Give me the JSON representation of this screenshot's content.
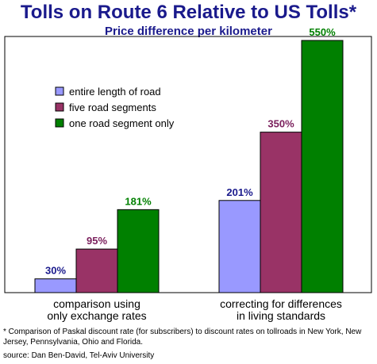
{
  "header": {
    "title": "Tolls on Route 6 Relative to US Tolls*",
    "subtitle": "Price difference per kilometer"
  },
  "footnote": "* Comparison of Paskal discount rate (for subscribers) to discount rates on tollroads in New York, New Jersey, Pennsylvania, Ohio and Florida.",
  "source": "source: Dan Ben-David, Tel-Aviv University",
  "colors": {
    "title": "#1a1a8c",
    "series": [
      "#9999ff",
      "#993366",
      "#008000"
    ],
    "labels": [
      "#1a1a8c",
      "#7a1f5c",
      "#008000"
    ]
  },
  "chart_data": {
    "type": "bar",
    "title": "Tolls on Route 6 Relative to US Tolls*",
    "subtitle": "Price difference per kilometer",
    "categories": [
      [
        "comparison using",
        "only exchange rates"
      ],
      [
        "correcting for differences",
        "in living standards"
      ]
    ],
    "series": [
      {
        "name": "entire length of road",
        "values": [
          30,
          201
        ],
        "labels": [
          "30%",
          "201%"
        ]
      },
      {
        "name": "five road segments",
        "values": [
          95,
          350
        ],
        "labels": [
          "95%",
          "350%"
        ]
      },
      {
        "name": "one road segment only",
        "values": [
          181,
          550
        ],
        "labels": [
          "181%",
          "550%"
        ]
      }
    ],
    "ylim": [
      0,
      550
    ],
    "grid": false,
    "legend": "top-left"
  }
}
